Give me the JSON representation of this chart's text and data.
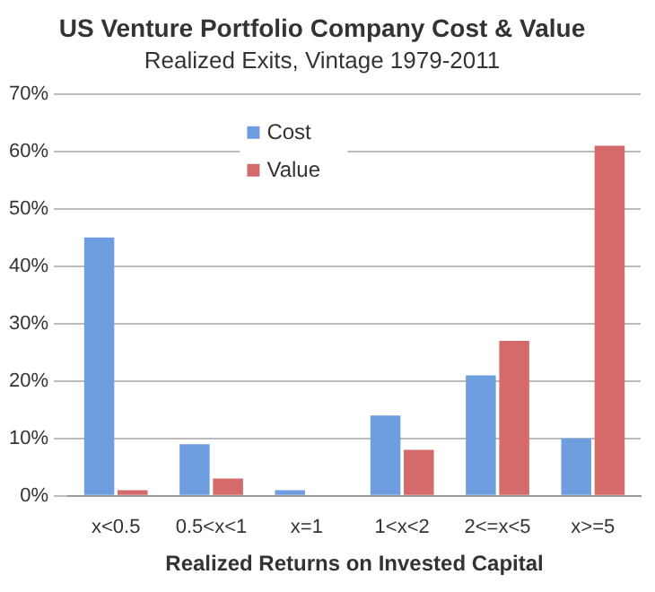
{
  "chart_data": {
    "type": "bar",
    "title": "US Venture Portfolio Company Cost & Value",
    "subtitle": "Realized Exits, Vintage 1979-2011",
    "xlabel": "Realized Returns on Invested Capital",
    "categories": [
      "x<0.5",
      "0.5<x<1",
      "x=1",
      "1<x<2",
      "2<=x<5",
      "x>=5"
    ],
    "series": [
      {
        "name": "Cost",
        "color": "#6f9ee0",
        "values": [
          45,
          9,
          1,
          14,
          21,
          10
        ]
      },
      {
        "name": "Value",
        "color": "#d46a6a",
        "values": [
          1,
          3,
          0,
          8,
          27,
          61
        ]
      }
    ],
    "ylim": [
      0,
      70
    ],
    "yticks": [
      {
        "value": 0,
        "label": "0%"
      },
      {
        "value": 10,
        "label": "10%"
      },
      {
        "value": 20,
        "label": "20%"
      },
      {
        "value": 30,
        "label": "30%"
      },
      {
        "value": 40,
        "label": "40%"
      },
      {
        "value": 50,
        "label": "50%"
      },
      {
        "value": 60,
        "label": "60%"
      },
      {
        "value": 70,
        "label": "70%"
      }
    ],
    "grid": "y",
    "legend": "top"
  }
}
